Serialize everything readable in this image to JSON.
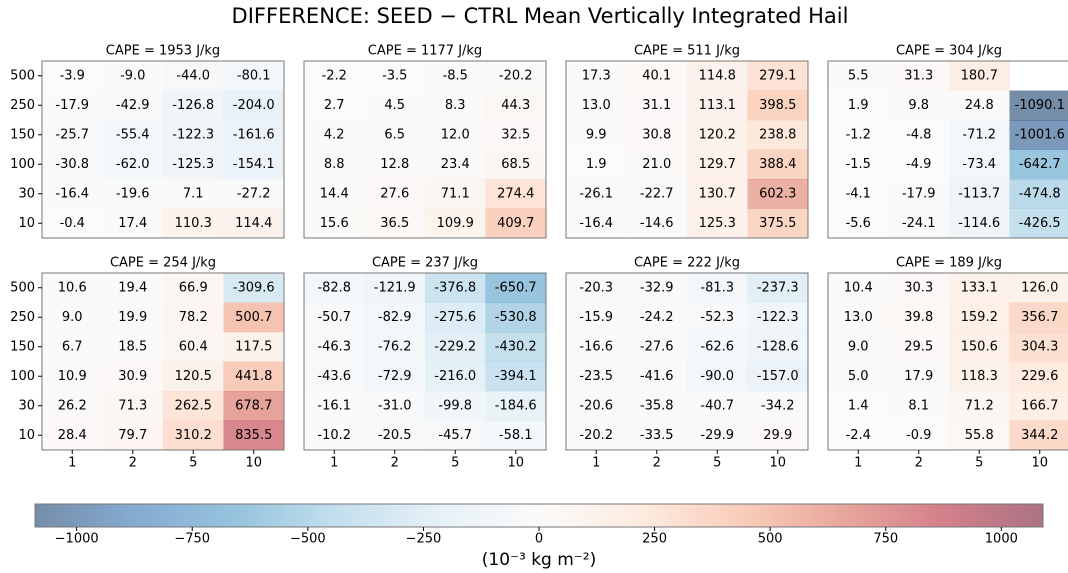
{
  "title": "DIFFERENCE: SEED − CTRL Mean Vertically Integrated Hail",
  "colorbar": {
    "lim": [
      -1090.1,
      1090.1
    ],
    "ticks": [
      {
        "value": -1000,
        "label": "−1000"
      },
      {
        "value": -750,
        "label": "−750"
      },
      {
        "value": -500,
        "label": "−500"
      },
      {
        "value": -250,
        "label": "−250"
      },
      0,
      250,
      500,
      750,
      1000
    ],
    "label": "(10⁻³ kg m⁻²)",
    "colors": [
      "#053061",
      "#2166ac",
      "#4393c3",
      "#92c5de",
      "#d1e5f0",
      "#f7f7f7",
      "#fddbc7",
      "#f4a582",
      "#d6604d",
      "#b2182b",
      "#67001f"
    ],
    "opacity": 0.55
  },
  "chart_data": [
    {
      "type": "heatmap",
      "title": "CAPE = 1953 J/kg",
      "y": [
        "500",
        "250",
        "150",
        "100",
        "30",
        "10"
      ],
      "values": [
        [
          -3.9,
          -9.0,
          -44.0,
          -80.1
        ],
        [
          -17.9,
          -42.9,
          -126.8,
          -204.0
        ],
        [
          -25.7,
          -55.4,
          -122.3,
          -161.6
        ],
        [
          -30.8,
          -62.0,
          -125.3,
          -154.1
        ],
        [
          -16.4,
          -19.6,
          7.1,
          -27.2
        ],
        [
          -0.4,
          17.4,
          110.3,
          114.4
        ]
      ],
      "value_labels": [
        [
          "-3.9",
          "-9.0",
          "-44.0",
          "-80.1"
        ],
        [
          "-17.9",
          "-42.9",
          "-126.8",
          "-204.0"
        ],
        [
          "-25.7",
          "-55.4",
          "-122.3",
          "-161.6"
        ],
        [
          "-30.8",
          "-62.0",
          "-125.3",
          "-154.1"
        ],
        [
          "-16.4",
          "-19.6",
          "7.1",
          "-27.2"
        ],
        [
          "-0.4",
          "17.4",
          "110.3",
          "114.4"
        ]
      ]
    },
    {
      "type": "heatmap",
      "title": "CAPE = 1177 J/kg",
      "values": [
        [
          -2.2,
          -3.5,
          -8.5,
          -20.2
        ],
        [
          2.7,
          4.5,
          8.3,
          44.3
        ],
        [
          4.2,
          6.5,
          12.0,
          32.5
        ],
        [
          8.8,
          12.8,
          23.4,
          68.5
        ],
        [
          14.4,
          27.6,
          71.1,
          274.4
        ],
        [
          15.6,
          36.5,
          109.9,
          409.7
        ]
      ],
      "value_labels": [
        [
          "-2.2",
          "-3.5",
          "-8.5",
          "-20.2"
        ],
        [
          "2.7",
          "4.5",
          "8.3",
          "44.3"
        ],
        [
          "4.2",
          "6.5",
          "12.0",
          "32.5"
        ],
        [
          "8.8",
          "12.8",
          "23.4",
          "68.5"
        ],
        [
          "14.4",
          "27.6",
          "71.1",
          "274.4"
        ],
        [
          "15.6",
          "36.5",
          "109.9",
          "409.7"
        ]
      ]
    },
    {
      "type": "heatmap",
      "title": "CAPE = 511 J/kg",
      "values": [
        [
          17.3,
          40.1,
          114.8,
          279.1
        ],
        [
          13.0,
          31.1,
          113.1,
          398.5
        ],
        [
          9.9,
          30.8,
          120.2,
          238.8
        ],
        [
          1.9,
          21.0,
          129.7,
          388.4
        ],
        [
          -26.1,
          -22.7,
          130.7,
          602.3
        ],
        [
          -16.4,
          -14.6,
          125.3,
          375.5
        ]
      ],
      "value_labels": [
        [
          "17.3",
          "40.1",
          "114.8",
          "279.1"
        ],
        [
          "13.0",
          "31.1",
          "113.1",
          "398.5"
        ],
        [
          "9.9",
          "30.8",
          "120.2",
          "238.8"
        ],
        [
          "1.9",
          "21.0",
          "129.7",
          "388.4"
        ],
        [
          "-26.1",
          "-22.7",
          "130.7",
          "602.3"
        ],
        [
          "-16.4",
          "-14.6",
          "125.3",
          "375.5"
        ]
      ]
    },
    {
      "type": "heatmap",
      "title": "CAPE = 304 J/kg",
      "values": [
        [
          5.5,
          31.3,
          180.7,
          null
        ],
        [
          1.9,
          9.8,
          24.8,
          -1090.1
        ],
        [
          -1.2,
          -4.8,
          -71.2,
          -1001.6
        ],
        [
          -1.5,
          -4.9,
          -73.4,
          -642.7
        ],
        [
          -4.1,
          -17.9,
          -113.7,
          -474.8
        ],
        [
          -5.6,
          -24.1,
          -114.6,
          -426.5
        ]
      ],
      "value_labels": [
        [
          "5.5",
          "31.3",
          "180.7",
          null
        ],
        [
          "1.9",
          "9.8",
          "24.8",
          "-1090.1"
        ],
        [
          "-1.2",
          "-4.8",
          "-71.2",
          "-1001.6"
        ],
        [
          "-1.5",
          "-4.9",
          "-73.4",
          "-642.7"
        ],
        [
          "-4.1",
          "-17.9",
          "-113.7",
          "-474.8"
        ],
        [
          "-5.6",
          "-24.1",
          "-114.6",
          "-426.5"
        ]
      ]
    },
    {
      "type": "heatmap",
      "title": "CAPE = 254 J/kg",
      "y": [
        "500",
        "250",
        "150",
        "100",
        "30",
        "10"
      ],
      "x": [
        "1",
        "2",
        "5",
        "10"
      ],
      "values": [
        [
          10.6,
          19.4,
          66.9,
          -309.6
        ],
        [
          9.0,
          19.9,
          78.2,
          500.7
        ],
        [
          6.7,
          18.5,
          60.4,
          117.5
        ],
        [
          10.9,
          30.9,
          120.5,
          441.8
        ],
        [
          26.2,
          71.3,
          262.5,
          678.7
        ],
        [
          28.4,
          79.7,
          310.2,
          835.5
        ]
      ],
      "value_labels": [
        [
          "10.6",
          "19.4",
          "66.9",
          "-309.6"
        ],
        [
          "9.0",
          "19.9",
          "78.2",
          "500.7"
        ],
        [
          "6.7",
          "18.5",
          "60.4",
          "117.5"
        ],
        [
          "10.9",
          "30.9",
          "120.5",
          "441.8"
        ],
        [
          "26.2",
          "71.3",
          "262.5",
          "678.7"
        ],
        [
          "28.4",
          "79.7",
          "310.2",
          "835.5"
        ]
      ]
    },
    {
      "type": "heatmap",
      "title": "CAPE = 237 J/kg",
      "x": [
        "1",
        "2",
        "5",
        "10"
      ],
      "values": [
        [
          -82.8,
          -121.9,
          -376.8,
          -650.7
        ],
        [
          -50.7,
          -82.9,
          -275.6,
          -530.8
        ],
        [
          -46.3,
          -76.2,
          -229.2,
          -430.2
        ],
        [
          -43.6,
          -72.9,
          -216.0,
          -394.1
        ],
        [
          -16.1,
          -31.0,
          -99.8,
          -184.6
        ],
        [
          -10.2,
          -20.5,
          -45.7,
          -58.1
        ]
      ],
      "value_labels": [
        [
          "-82.8",
          "-121.9",
          "-376.8",
          "-650.7"
        ],
        [
          "-50.7",
          "-82.9",
          "-275.6",
          "-530.8"
        ],
        [
          "-46.3",
          "-76.2",
          "-229.2",
          "-430.2"
        ],
        [
          "-43.6",
          "-72.9",
          "-216.0",
          "-394.1"
        ],
        [
          "-16.1",
          "-31.0",
          "-99.8",
          "-184.6"
        ],
        [
          "-10.2",
          "-20.5",
          "-45.7",
          "-58.1"
        ]
      ]
    },
    {
      "type": "heatmap",
      "title": "CAPE = 222 J/kg",
      "x": [
        "1",
        "2",
        "5",
        "10"
      ],
      "values": [
        [
          -20.3,
          -32.9,
          -81.3,
          -237.3
        ],
        [
          -15.9,
          -24.2,
          -52.3,
          -122.3
        ],
        [
          -16.6,
          -27.6,
          -62.6,
          -128.6
        ],
        [
          -23.5,
          -41.6,
          -90.0,
          -157.0
        ],
        [
          -20.6,
          -35.8,
          -40.7,
          -34.2
        ],
        [
          -20.2,
          -33.5,
          -29.9,
          29.9
        ]
      ],
      "value_labels": [
        [
          "-20.3",
          "-32.9",
          "-81.3",
          "-237.3"
        ],
        [
          "-15.9",
          "-24.2",
          "-52.3",
          "-122.3"
        ],
        [
          "-16.6",
          "-27.6",
          "-62.6",
          "-128.6"
        ],
        [
          "-23.5",
          "-41.6",
          "-90.0",
          "-157.0"
        ],
        [
          "-20.6",
          "-35.8",
          "-40.7",
          "-34.2"
        ],
        [
          "-20.2",
          "-33.5",
          "-29.9",
          "29.9"
        ]
      ]
    },
    {
      "type": "heatmap",
      "title": "CAPE = 189 J/kg",
      "x": [
        "1",
        "2",
        "5",
        "10"
      ],
      "values": [
        [
          10.4,
          30.3,
          133.1,
          126.0
        ],
        [
          13.0,
          39.8,
          159.2,
          356.7
        ],
        [
          9.0,
          29.5,
          150.6,
          304.3
        ],
        [
          5.0,
          17.9,
          118.3,
          229.6
        ],
        [
          1.4,
          8.1,
          71.2,
          166.7
        ],
        [
          -2.4,
          -0.9,
          55.8,
          344.2
        ]
      ],
      "value_labels": [
        [
          "10.4",
          "30.3",
          "133.1",
          "126.0"
        ],
        [
          "13.0",
          "39.8",
          "159.2",
          "356.7"
        ],
        [
          "9.0",
          "29.5",
          "150.6",
          "304.3"
        ],
        [
          "5.0",
          "17.9",
          "118.3",
          "229.6"
        ],
        [
          "1.4",
          "8.1",
          "71.2",
          "166.7"
        ],
        [
          "-2.4",
          "-0.9",
          "55.8",
          "344.2"
        ]
      ]
    }
  ]
}
